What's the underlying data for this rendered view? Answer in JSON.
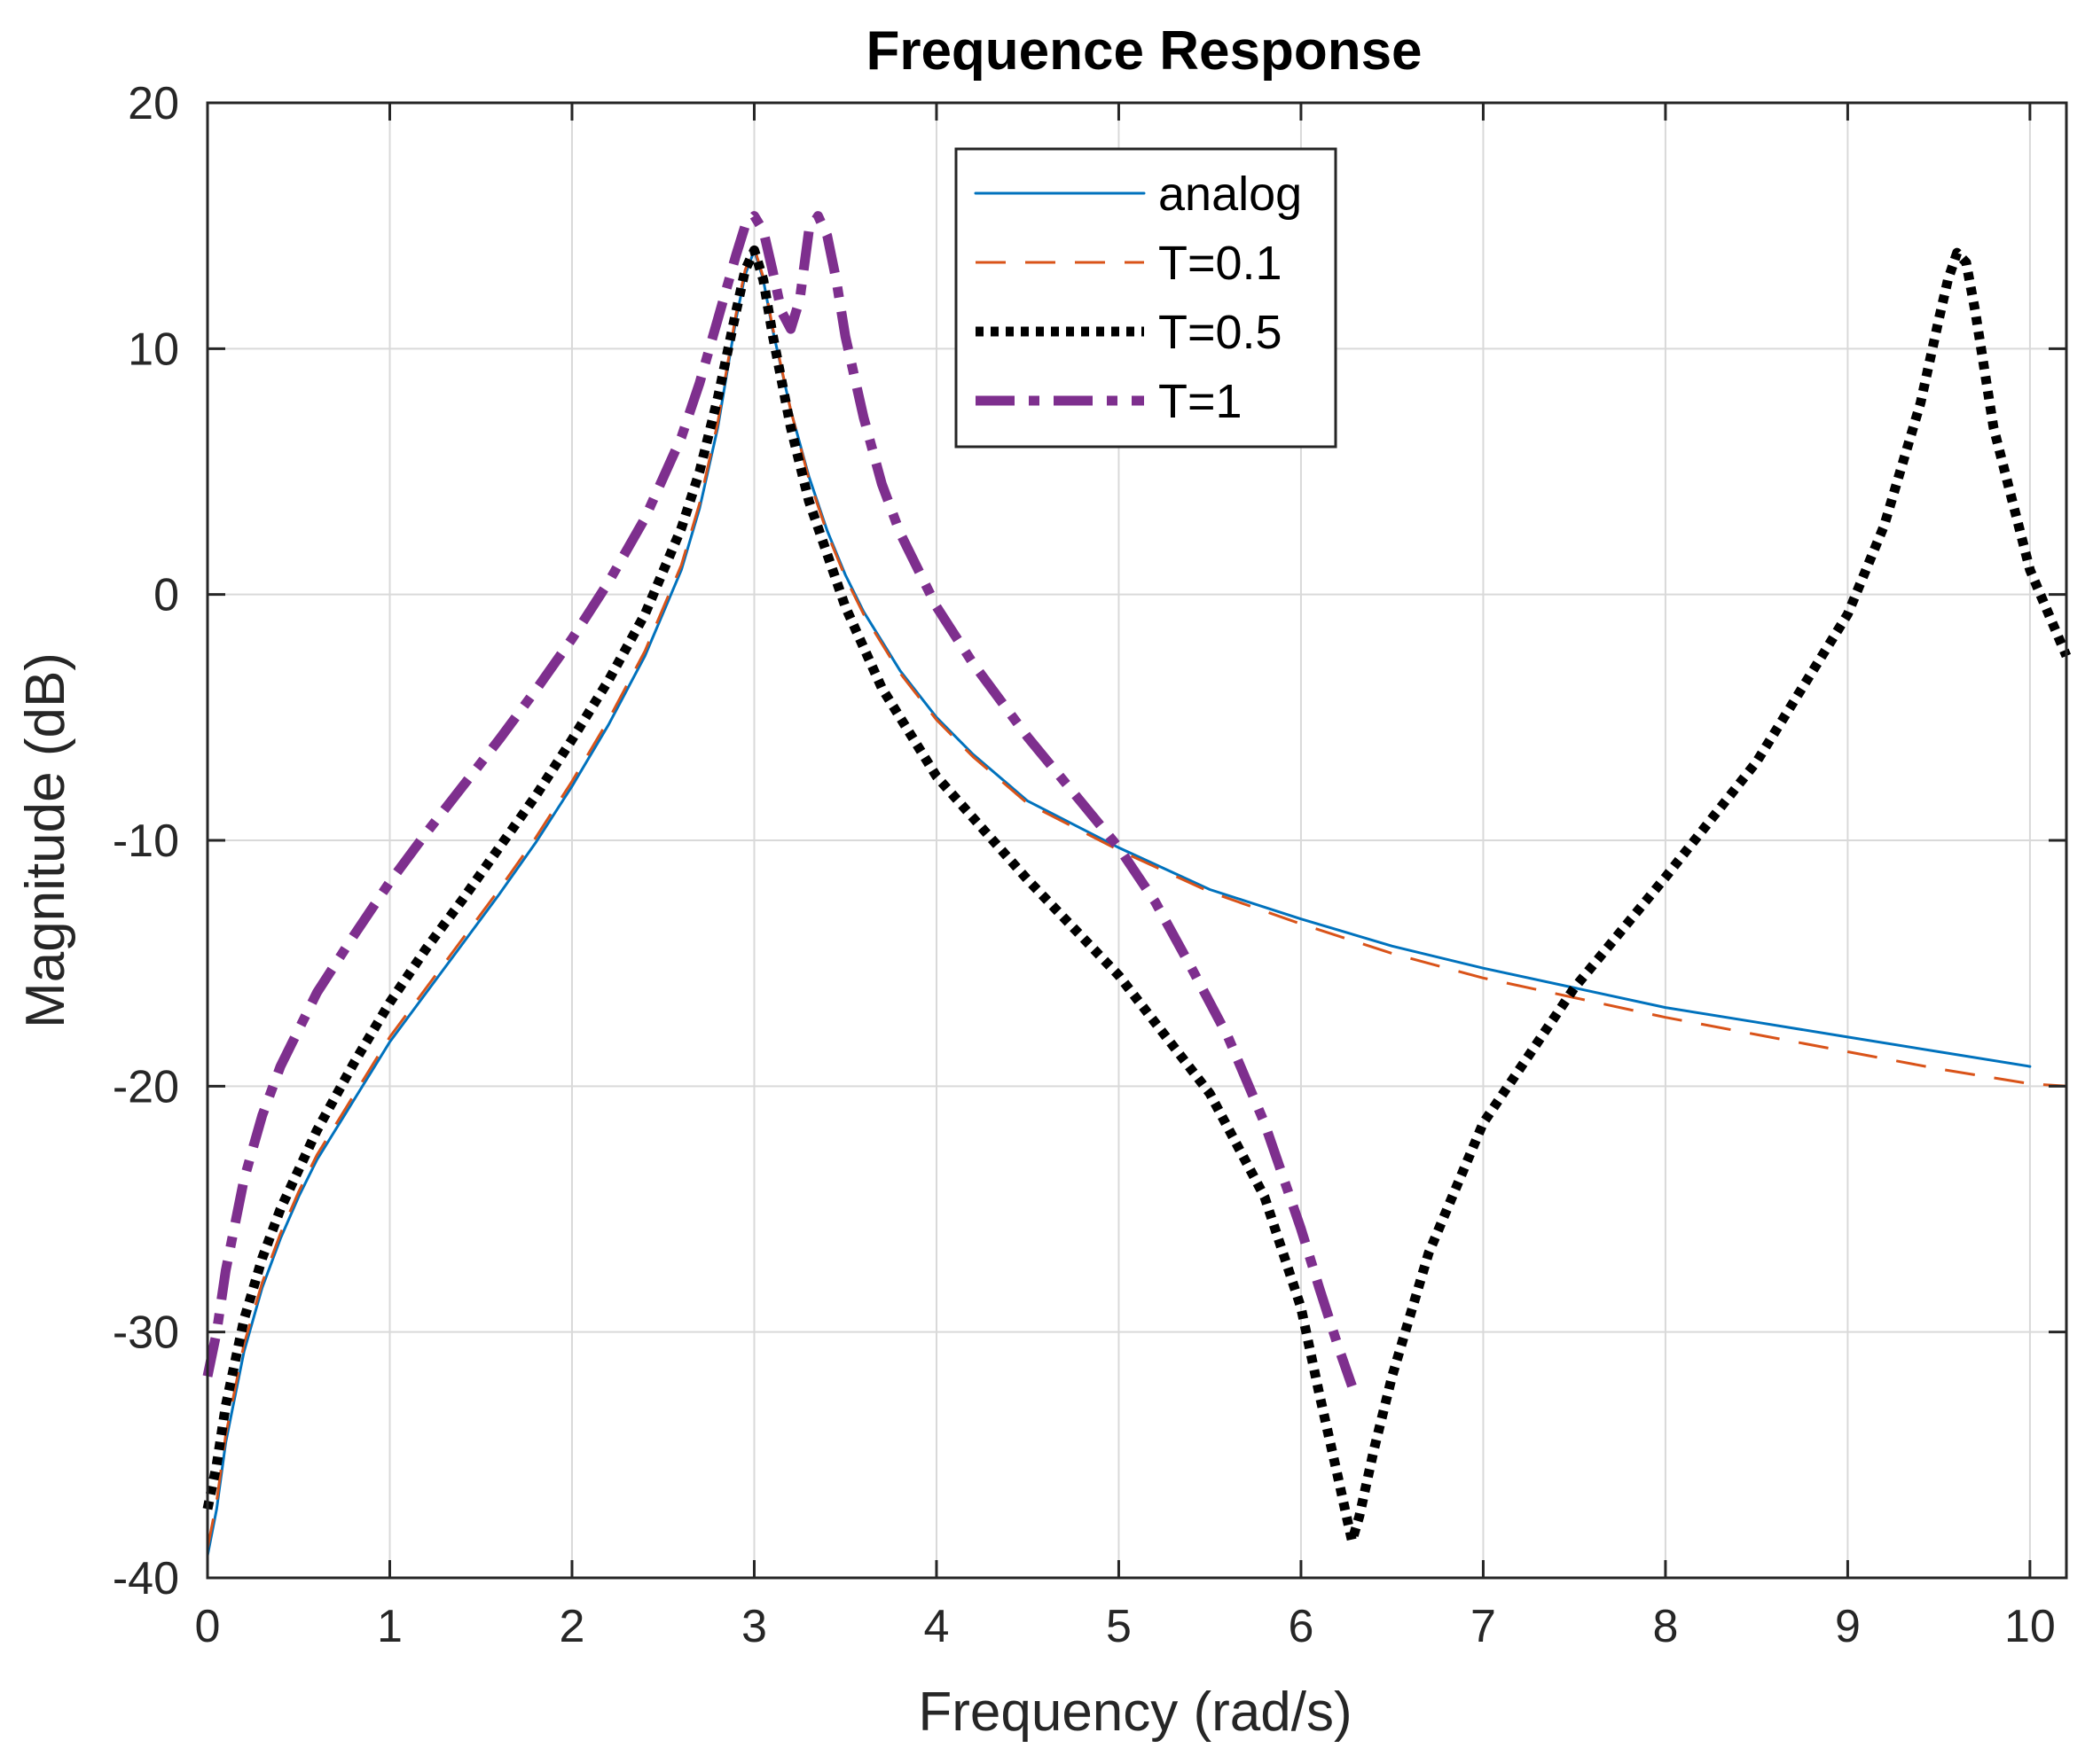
{
  "chart_data": {
    "type": "line",
    "title": "Frequence Response",
    "xlabel": "Frequency (rad/s)",
    "ylabel": "Magnitude (dB)",
    "xlim": [
      0,
      10.2
    ],
    "ylim": [
      -40,
      20
    ],
    "xticks": [
      0,
      1,
      2,
      3,
      4,
      5,
      6,
      7,
      8,
      9,
      10
    ],
    "yticks": [
      -40,
      -30,
      -20,
      -10,
      0,
      10,
      20
    ],
    "grid": true,
    "legend_position": "top-center",
    "series": [
      {
        "name": "analog",
        "color": "#0072bd",
        "style": "solid",
        "x": [
          0.0,
          0.05,
          0.1,
          0.2,
          0.3,
          0.4,
          0.5,
          0.6,
          0.8,
          1.0,
          1.2,
          1.4,
          1.6,
          1.8,
          2.0,
          2.2,
          2.4,
          2.6,
          2.7,
          2.8,
          2.85,
          2.9,
          2.95,
          3.0,
          3.05,
          3.1,
          3.2,
          3.3,
          3.4,
          3.5,
          3.6,
          3.8,
          4.0,
          4.2,
          4.5,
          5.0,
          5.5,
          6.0,
          6.5,
          7.0,
          7.5,
          8.0,
          8.5,
          9.0,
          9.5,
          10.0
        ],
        "y": [
          -39.1,
          -37.2,
          -34.5,
          -30.8,
          -28.2,
          -26.2,
          -24.5,
          -23.0,
          -20.6,
          -18.2,
          -16.2,
          -14.2,
          -12.2,
          -10.1,
          -7.8,
          -5.3,
          -2.5,
          1.0,
          3.5,
          6.8,
          9.0,
          11.2,
          13.0,
          14.0,
          12.8,
          10.8,
          7.5,
          4.8,
          2.6,
          0.8,
          -0.7,
          -3.1,
          -5.0,
          -6.5,
          -8.4,
          -10.3,
          -12.0,
          -13.2,
          -14.3,
          -15.2,
          -16.0,
          -16.8,
          -17.4,
          -18.0,
          -18.6,
          -19.2
        ]
      },
      {
        "name": "T=0.1",
        "color": "#d95319",
        "style": "dashed",
        "x": [
          0.0,
          0.05,
          0.1,
          0.2,
          0.3,
          0.4,
          0.5,
          0.6,
          0.8,
          1.0,
          1.2,
          1.4,
          1.6,
          1.8,
          2.0,
          2.2,
          2.4,
          2.6,
          2.7,
          2.8,
          2.85,
          2.9,
          2.95,
          3.0,
          3.05,
          3.1,
          3.2,
          3.3,
          3.4,
          3.5,
          3.6,
          3.8,
          4.0,
          4.2,
          4.5,
          5.0,
          5.5,
          6.0,
          6.5,
          7.0,
          7.5,
          8.0,
          8.5,
          9.0,
          9.5,
          10.0,
          10.2
        ],
        "y": [
          -38.8,
          -36.9,
          -34.2,
          -30.5,
          -28.0,
          -26.0,
          -24.3,
          -22.8,
          -20.4,
          -18.0,
          -16.0,
          -14.0,
          -12.0,
          -9.9,
          -7.6,
          -5.1,
          -2.3,
          1.2,
          3.7,
          7.0,
          9.2,
          11.4,
          13.2,
          14.1,
          12.9,
          10.9,
          7.5,
          4.7,
          2.5,
          0.7,
          -0.8,
          -3.2,
          -5.1,
          -6.6,
          -8.5,
          -10.4,
          -12.1,
          -13.4,
          -14.6,
          -15.6,
          -16.4,
          -17.2,
          -17.9,
          -18.6,
          -19.3,
          -19.9,
          -20.0
        ]
      },
      {
        "name": "T=0.5",
        "color": "#000000",
        "style": "dotted",
        "x": [
          0.0,
          0.05,
          0.1,
          0.2,
          0.3,
          0.4,
          0.6,
          0.8,
          1.0,
          1.2,
          1.4,
          1.6,
          1.8,
          2.0,
          2.2,
          2.4,
          2.6,
          2.7,
          2.8,
          2.9,
          2.95,
          3.0,
          3.05,
          3.1,
          3.2,
          3.3,
          3.5,
          3.7,
          4.0,
          4.5,
          5.0,
          5.5,
          5.8,
          6.0,
          6.1,
          6.2,
          6.25,
          6.28,
          6.32,
          6.4,
          6.5,
          6.7,
          7.0,
          7.5,
          8.0,
          8.5,
          9.0,
          9.2,
          9.4,
          9.5,
          9.55,
          9.6,
          9.65,
          9.7,
          9.8,
          10.0,
          10.2
        ],
        "y": [
          -37.2,
          -35.4,
          -33.0,
          -29.5,
          -27.0,
          -25.0,
          -21.8,
          -19.1,
          -16.6,
          -14.4,
          -12.4,
          -10.3,
          -8.2,
          -5.9,
          -3.5,
          -0.8,
          2.7,
          5.0,
          8.0,
          11.5,
          13.2,
          14.0,
          12.8,
          10.6,
          6.8,
          3.8,
          -0.5,
          -3.8,
          -7.4,
          -11.6,
          -15.5,
          -20.3,
          -24.5,
          -29.0,
          -32.5,
          -35.8,
          -37.5,
          -38.5,
          -37.5,
          -34.8,
          -31.8,
          -26.8,
          -21.5,
          -16.0,
          -11.5,
          -6.8,
          -0.8,
          2.8,
          7.8,
          11.2,
          12.8,
          13.9,
          13.5,
          11.5,
          6.8,
          1.0,
          -2.5
        ]
      },
      {
        "name": "T=1",
        "color": "#7e2f8e",
        "style": "dashdot",
        "x": [
          0.0,
          0.05,
          0.1,
          0.2,
          0.3,
          0.4,
          0.6,
          0.8,
          1.0,
          1.2,
          1.4,
          1.6,
          1.8,
          2.0,
          2.2,
          2.4,
          2.6,
          2.7,
          2.8,
          2.9,
          2.95,
          3.0,
          3.05,
          3.1,
          3.15,
          3.2,
          3.25,
          3.3,
          3.35,
          3.4,
          3.45,
          3.5,
          3.6,
          3.7,
          3.8,
          4.0,
          4.2,
          4.5,
          4.8,
          5.0,
          5.2,
          5.4,
          5.6,
          5.8,
          6.0,
          6.1,
          6.2,
          6.28
        ],
        "y": [
          -31.8,
          -30.0,
          -27.5,
          -23.8,
          -21.2,
          -19.2,
          -16.2,
          -13.9,
          -11.7,
          -9.7,
          -7.8,
          -5.9,
          -3.9,
          -1.8,
          0.5,
          3.1,
          6.4,
          8.6,
          11.2,
          13.8,
          15.0,
          15.4,
          14.8,
          13.2,
          11.5,
          10.8,
          12.0,
          14.8,
          15.4,
          14.6,
          12.8,
          10.5,
          7.2,
          4.5,
          2.5,
          -0.5,
          -2.8,
          -5.8,
          -8.5,
          -10.3,
          -12.5,
          -15.2,
          -18.0,
          -21.5,
          -25.8,
          -28.2,
          -30.5,
          -32.2
        ]
      }
    ]
  }
}
